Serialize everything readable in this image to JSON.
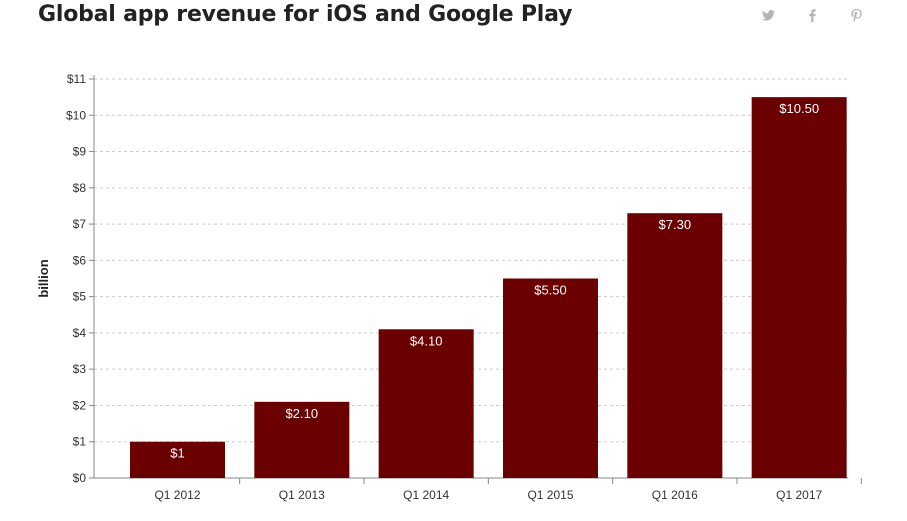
{
  "title": "Global app revenue for iOS and Google Play",
  "share": {
    "icons": [
      "twitter-icon",
      "facebook-icon",
      "pinterest-icon"
    ],
    "color": "#b5b5b5"
  },
  "colors": {
    "bar": "#6b0000",
    "bar_label": "#ffffff",
    "grid": "#cccccc",
    "axis": "#888888",
    "tick_text": "#333333"
  },
  "chart_data": {
    "type": "bar",
    "categories": [
      "Q1 2012",
      "Q1 2013",
      "Q1 2014",
      "Q1 2015",
      "Q1 2016",
      "Q1 2017"
    ],
    "values": [
      1,
      2.1,
      4.1,
      5.5,
      7.3,
      10.5
    ],
    "value_labels": [
      "$1",
      "$2.10",
      "$4.10",
      "$5.50",
      "$7.30",
      "$10.50"
    ],
    "ylabel": "billion",
    "xlabel": "",
    "ylim": [
      0,
      11
    ],
    "y_ticks": [
      0,
      1,
      2,
      3,
      4,
      5,
      6,
      7,
      8,
      9,
      10,
      11
    ],
    "y_tick_labels": [
      "$0",
      "$1",
      "$2",
      "$3",
      "$4",
      "$5",
      "$6",
      "$7",
      "$8",
      "$9",
      "$10",
      "$11"
    ],
    "grid": true,
    "grid_style": "dashed horizontal"
  }
}
